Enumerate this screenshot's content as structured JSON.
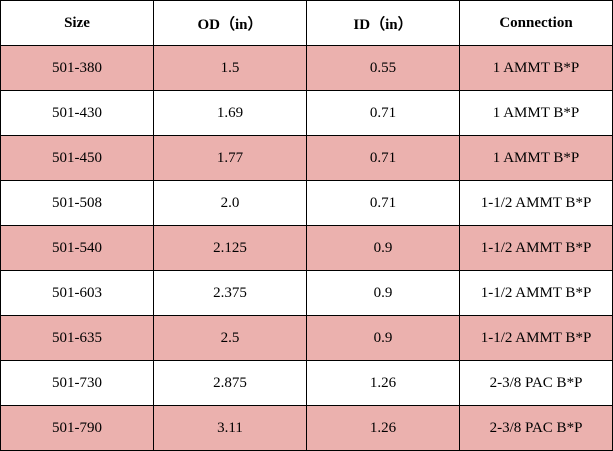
{
  "table": {
    "headers": [
      "Size",
      "OD（in）",
      "ID（in）",
      "Connection"
    ],
    "rows": [
      {
        "size": "501-380",
        "od": "1.5",
        "id": "0.55",
        "connection": "1 AMMT B*P"
      },
      {
        "size": "501-430",
        "od": "1.69",
        "id": "0.71",
        "connection": "1 AMMT B*P"
      },
      {
        "size": "501-450",
        "od": "1.77",
        "id": "0.71",
        "connection": "1 AMMT B*P"
      },
      {
        "size": "501-508",
        "od": "2.0",
        "id": "0.71",
        "connection": "1-1/2 AMMT B*P"
      },
      {
        "size": "501-540",
        "od": "2.125",
        "id": "0.9",
        "connection": "1-1/2 AMMT B*P"
      },
      {
        "size": "501-603",
        "od": "2.375",
        "id": "0.9",
        "connection": "1-1/2 AMMT B*P"
      },
      {
        "size": "501-635",
        "od": "2.5",
        "id": "0.9",
        "connection": "1-1/2 AMMT B*P"
      },
      {
        "size": "501-730",
        "od": "2.875",
        "id": "1.26",
        "connection": "2-3/8 PAC B*P"
      },
      {
        "size": "501-790",
        "od": "3.11",
        "id": "1.26",
        "connection": "2-3/8 PAC B*P"
      }
    ],
    "row_shading": [
      "shaded",
      "plain",
      "shaded",
      "plain",
      "shaded",
      "plain",
      "shaded",
      "plain",
      "shaded"
    ],
    "colors": {
      "shaded_row": "#ebb1ae",
      "plain_row": "#ffffff",
      "border": "#000000"
    }
  }
}
